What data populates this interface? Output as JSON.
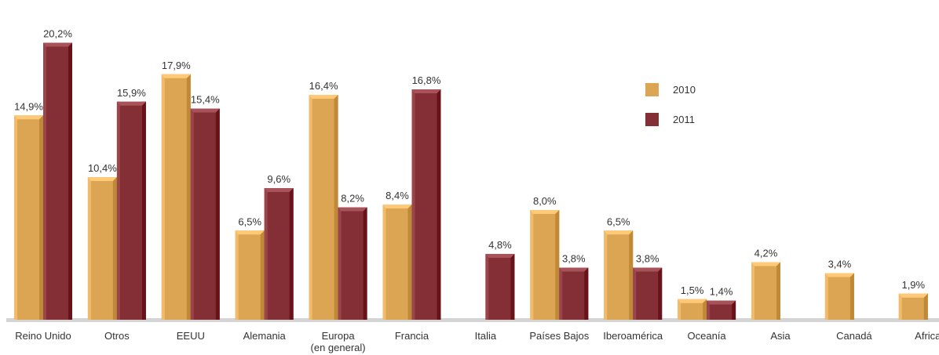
{
  "chart_data": {
    "type": "bar",
    "categories": [
      [
        "Reino Unido"
      ],
      [
        "Otros"
      ],
      [
        "EEUU"
      ],
      [
        "Alemania"
      ],
      [
        "Europa",
        "(en general)"
      ],
      [
        "Francia"
      ],
      [
        "Italia"
      ],
      [
        "Países Bajos"
      ],
      [
        "Iberoamérica"
      ],
      [
        "Oceanía"
      ],
      [
        "Asia"
      ],
      [
        "Canadá"
      ],
      [
        "Africa"
      ]
    ],
    "series": [
      {
        "name": "2010",
        "color": "#dba553",
        "values": [
          14.9,
          10.4,
          17.9,
          6.5,
          16.4,
          8.4,
          null,
          8.0,
          6.5,
          1.5,
          4.2,
          3.4,
          1.9
        ],
        "labels": [
          "14,9%",
          "10,4%",
          "17,9%",
          "6,5%",
          "16,4%",
          "8,4%",
          null,
          "8,0%",
          "6,5%",
          "1,5%",
          "4,2%",
          "3,4%",
          "1,9%"
        ]
      },
      {
        "name": "2011",
        "color": "#842f35",
        "values": [
          20.2,
          15.9,
          15.4,
          9.6,
          8.2,
          16.8,
          4.8,
          3.8,
          3.8,
          1.4,
          null,
          null,
          null
        ],
        "labels": [
          "20,2%",
          "15,9%",
          "15,4%",
          "9,6%",
          "8,2%",
          "16,8%",
          "4,8%",
          "3,8%",
          "3,8%",
          "1,4%",
          null,
          null,
          null
        ]
      }
    ],
    "ylim": [
      0,
      21
    ],
    "grid": false,
    "legend_position": "top-right"
  }
}
